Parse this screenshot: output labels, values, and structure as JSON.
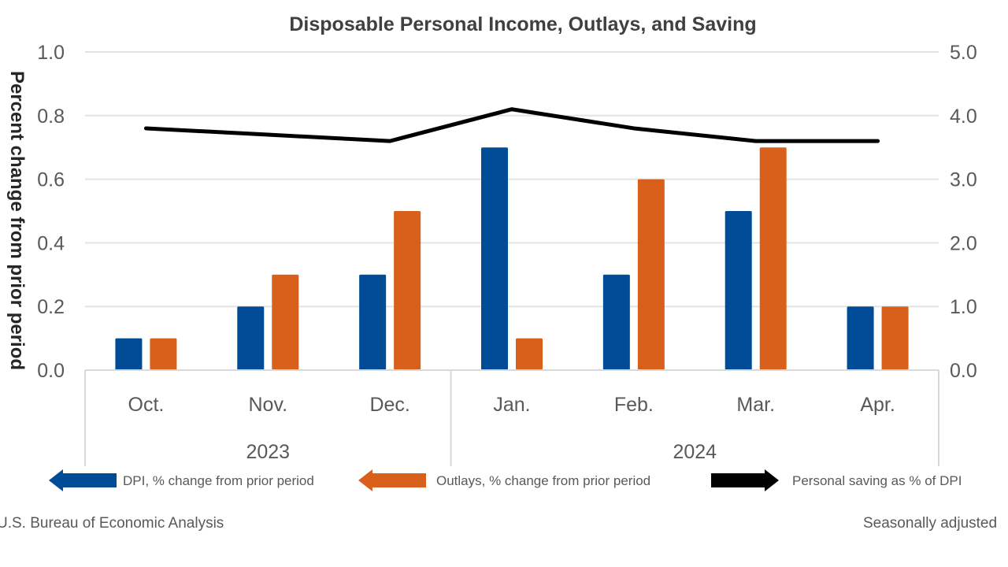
{
  "chart_data": {
    "type": "bar",
    "title": "Disposable Personal Income, Outlays, and Saving",
    "ylabel": "Percent change from prior period",
    "ylim": [
      0,
      1.0
    ],
    "y2lim": [
      0,
      5.0
    ],
    "yticks": [
      "0.0",
      "0.2",
      "0.4",
      "0.6",
      "0.8",
      "1.0"
    ],
    "y2ticks": [
      "0.0",
      "1.0",
      "2.0",
      "3.0",
      "4.0",
      "5.0"
    ],
    "categories": [
      "Oct.",
      "Nov.",
      "Dec.",
      "Jan.",
      "Feb.",
      "Mar.",
      "Apr."
    ],
    "groups": [
      {
        "label": "2023",
        "count": 3
      },
      {
        "label": "2024",
        "count": 4
      }
    ],
    "series": [
      {
        "name": "DPI, % change from prior period",
        "type": "bar",
        "axis": "left",
        "color": "#004c97",
        "values": [
          0.1,
          0.2,
          0.3,
          0.7,
          0.3,
          0.5,
          0.2
        ]
      },
      {
        "name": "Outlays, % change from prior period",
        "type": "bar",
        "axis": "left",
        "color": "#d9601a",
        "values": [
          0.1,
          0.3,
          0.5,
          0.1,
          0.6,
          0.7,
          0.2
        ]
      },
      {
        "name": "Personal saving as % of DPI",
        "type": "line",
        "axis": "right",
        "color": "#000000",
        "values": [
          3.8,
          3.7,
          3.6,
          4.1,
          3.8,
          3.6,
          3.6
        ]
      }
    ],
    "grid": true,
    "legend_position": "bottom"
  },
  "footer": {
    "source": "U.S. Bureau of Economic  Analysis",
    "note": "Seasonally adjusted"
  }
}
